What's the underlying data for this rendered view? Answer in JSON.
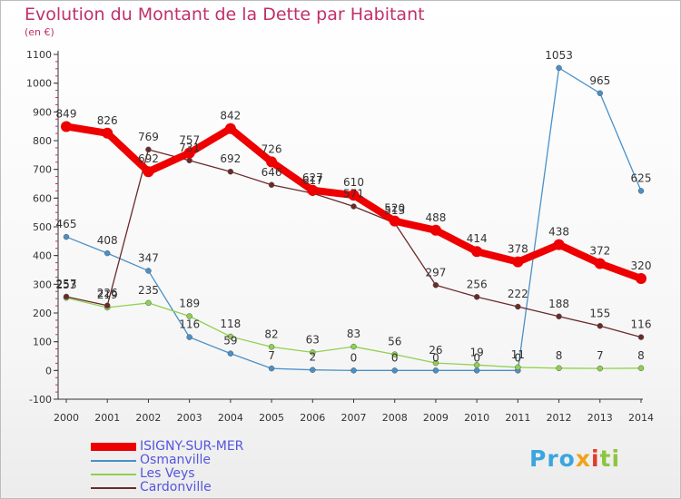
{
  "chart_data": {
    "type": "line",
    "title": "Evolution du Montant de la Dette par Habitant",
    "subtitle": "(en €)",
    "x": [
      "2000",
      "2001",
      "2002",
      "2003",
      "2004",
      "2005",
      "2006",
      "2007",
      "2008",
      "2009",
      "2010",
      "2011",
      "2012",
      "2013",
      "2014"
    ],
    "ylim": [
      -100,
      1100
    ],
    "yticks": [
      -100,
      0,
      100,
      200,
      300,
      400,
      500,
      600,
      700,
      800,
      900,
      1000,
      1100
    ],
    "grid": false,
    "legend_position": "bottom-left",
    "series": [
      {
        "name": "ISIGNY-SUR-MER",
        "color": "#ee0000",
        "values": [
          849,
          826,
          692,
          757,
          842,
          726,
          627,
          610,
          520,
          488,
          414,
          378,
          438,
          372,
          320
        ]
      },
      {
        "name": "Osmanville",
        "color": "#4a90c8",
        "values": [
          465,
          408,
          347,
          116,
          59,
          7,
          2,
          0,
          0,
          0,
          0,
          0,
          1053,
          965,
          625
        ]
      },
      {
        "name": "Les Veys",
        "color": "#8fd14f",
        "values": [
          253,
          219,
          235,
          189,
          118,
          82,
          63,
          83,
          56,
          26,
          19,
          11,
          8,
          7,
          8
        ]
      },
      {
        "name": "Cardonville",
        "color": "#6b2a2a",
        "values": [
          257,
          226,
          769,
          731,
          692,
          646,
          617,
          571,
          513,
          297,
          256,
          222,
          188,
          155,
          116
        ]
      }
    ]
  },
  "logo": {
    "p1": "Pro",
    "x": "x",
    "i": "i",
    "ti": "ti"
  }
}
